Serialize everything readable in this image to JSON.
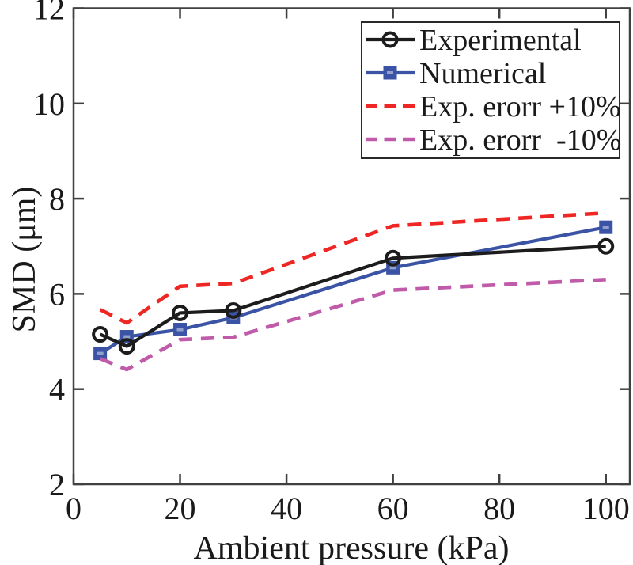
{
  "figure": {
    "background": "#ffffff",
    "axis_color": "#404040",
    "text_color": "#1a1a1a",
    "legend_border_color": "#2a2a2a"
  },
  "chart_data": {
    "type": "line",
    "title": "",
    "xlabel": "Ambient pressure (kPa)",
    "ylabel": "SMD (μm)",
    "xlim": [
      0,
      104.5
    ],
    "ylim": [
      2,
      12
    ],
    "xticks": [
      0,
      20,
      40,
      60,
      80,
      100
    ],
    "yticks": [
      2,
      4,
      6,
      8,
      10,
      12
    ],
    "grid": false,
    "legend_position": "top-right",
    "x": [
      5,
      10,
      20,
      30,
      60,
      100
    ],
    "series": [
      {
        "name": "Experimental",
        "color": "#1c1c1c",
        "style": "solid",
        "marker": "circle",
        "values": [
          5.15,
          4.9,
          5.6,
          5.65,
          6.75,
          7.0
        ]
      },
      {
        "name": "Numerical",
        "color": "#3a53a4",
        "style": "solid",
        "marker": "square",
        "values": [
          4.75,
          5.1,
          5.25,
          5.5,
          6.55,
          7.4
        ]
      },
      {
        "name": "Exp. erorr +10%",
        "color": "#ee2624",
        "style": "dashed",
        "marker": "none",
        "values": [
          5.67,
          5.39,
          6.16,
          6.22,
          7.43,
          7.7
        ]
      },
      {
        "name": "Exp. erorr  -10%",
        "color": "#c05ba9",
        "style": "dashed",
        "marker": "none",
        "values": [
          4.64,
          4.41,
          5.04,
          5.09,
          6.08,
          6.3
        ]
      }
    ]
  }
}
